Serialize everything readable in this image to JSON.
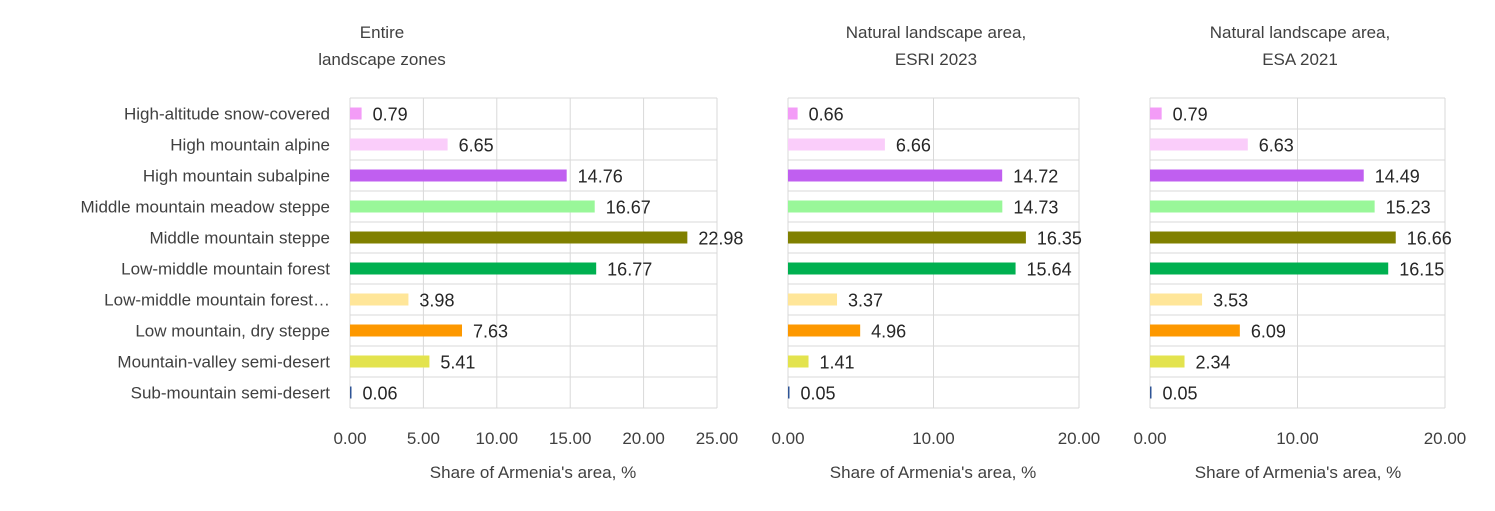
{
  "chart_data": {
    "type": "bar",
    "orientation": "horizontal",
    "categories": [
      "High-altitude snow-covered",
      "High mountain alpine",
      "High mountain subalpine",
      "Middle mountain meadow steppe",
      "Middle mountain steppe",
      "Low-middle mountain forest",
      "Low-middle mountain forest…",
      "Low mountain, dry steppe",
      "Mountain-valley semi-desert",
      "Sub-mountain semi-desert"
    ],
    "category_colors": [
      "#f39cf7",
      "#facdfa",
      "#c05ff0",
      "#99f799",
      "#808000",
      "#00b050",
      "#ffe699",
      "#fd9800",
      "#e3e34e",
      "#2f5496"
    ],
    "panels": [
      {
        "title_lines": [
          "Entire",
          "landscape zones"
        ],
        "xlabel": "Share of Armenia's area, %",
        "xlim": [
          0,
          25
        ],
        "ticks": [
          0,
          5,
          10,
          15,
          20,
          25
        ],
        "tick_labels": [
          "0.00",
          "5.00",
          "10.00",
          "15.00",
          "20.00",
          "25.00"
        ],
        "values": [
          0.79,
          6.65,
          14.76,
          16.67,
          22.98,
          16.77,
          3.98,
          7.63,
          5.41,
          0.06
        ],
        "value_labels": [
          "0.79",
          "6.65",
          "14.76",
          "16.67",
          "22.98",
          "16.77",
          "3.98",
          "7.63",
          "5.41",
          "0.06"
        ]
      },
      {
        "title_lines": [
          "Natural landscape area,",
          "ESRI 2023"
        ],
        "xlabel": "Share of Armenia's area, %",
        "xlim": [
          0,
          20
        ],
        "ticks": [
          0,
          10,
          20
        ],
        "tick_labels": [
          "0.00",
          "10.00",
          "20.00"
        ],
        "values": [
          0.66,
          6.66,
          14.72,
          14.73,
          16.35,
          15.64,
          3.37,
          4.96,
          1.41,
          0.05
        ],
        "value_labels": [
          "0.66",
          "6.66",
          "14.72",
          "14.73",
          "16.35",
          "15.64",
          "3.37",
          "4.96",
          "1.41",
          "0.05"
        ]
      },
      {
        "title_lines": [
          "Natural landscape area,",
          "ESA 2021"
        ],
        "xlabel": "Share of Armenia's area, %",
        "xlim": [
          0,
          20
        ],
        "ticks": [
          0,
          10,
          20
        ],
        "tick_labels": [
          "0.00",
          "10.00",
          "20.00"
        ],
        "values": [
          0.79,
          6.63,
          14.49,
          15.23,
          16.66,
          16.15,
          3.53,
          6.09,
          2.34,
          0.05
        ],
        "value_labels": [
          "0.79",
          "6.63",
          "14.49",
          "15.23",
          "16.66",
          "16.15",
          "3.53",
          "6.09",
          "2.34",
          "0.05"
        ]
      }
    ],
    "grid": true,
    "legend": "none"
  }
}
